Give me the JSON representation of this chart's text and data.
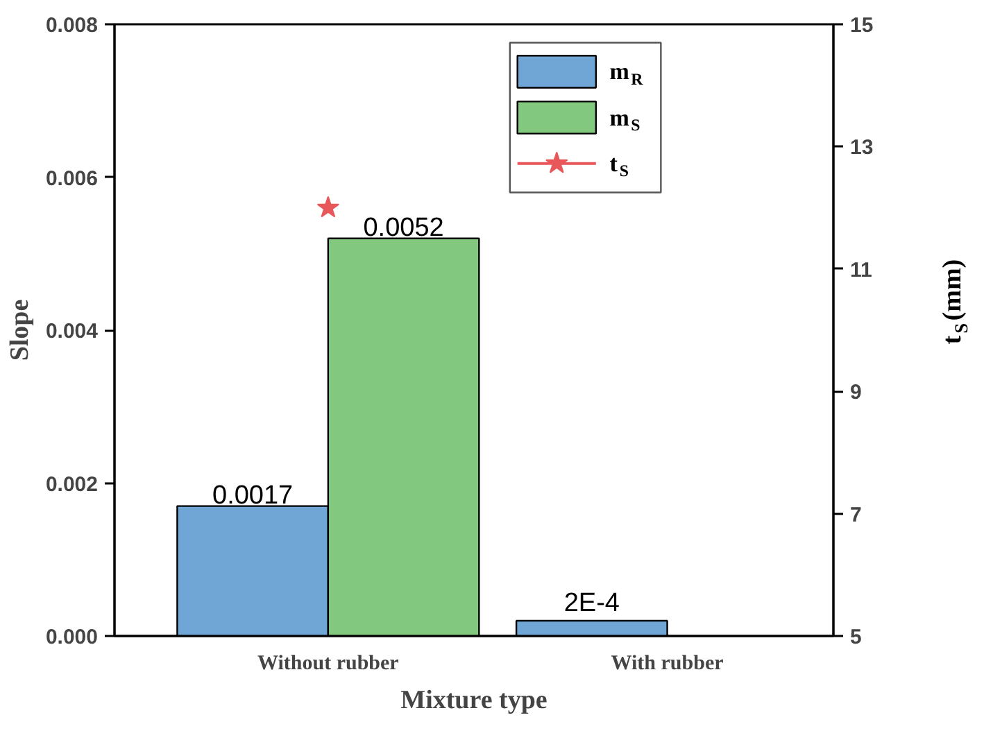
{
  "chart_data": {
    "type": "bar",
    "xlabel": "Mixture type",
    "ylabel": "Slope",
    "y2label": "t$_{S}$(mm)",
    "categories": [
      "Without rubber",
      "With rubber"
    ],
    "series": [
      {
        "name": "m$_{R}$",
        "color": "#6fa6d6",
        "values": [
          0.0017,
          0.0002
        ],
        "value_labels": [
          "0.0017",
          "2E-4"
        ]
      },
      {
        "name": "m$_{S}$",
        "color": "#82c97f",
        "values": [
          0.0052,
          null
        ],
        "value_labels": [
          "0.0052",
          null
        ]
      },
      {
        "name": "t$_{S}$",
        "type": "line",
        "axis": "y2",
        "marker": "star",
        "line_style": "solid",
        "color": "#e8585a",
        "values": [
          12,
          null
        ]
      }
    ],
    "ylim": [
      0,
      0.008
    ],
    "yticks": [
      {
        "value": 0,
        "label": "0.000"
      },
      {
        "value": 0.002,
        "label": "0.002"
      },
      {
        "value": 0.004,
        "label": "0.004"
      },
      {
        "value": 0.006,
        "label": "0.006"
      },
      {
        "value": 0.008,
        "label": "0.008"
      }
    ],
    "y2lim": [
      5,
      15
    ],
    "y2ticks": [
      5,
      7,
      9,
      11,
      13,
      15
    ],
    "grid": false,
    "legend": "top"
  }
}
